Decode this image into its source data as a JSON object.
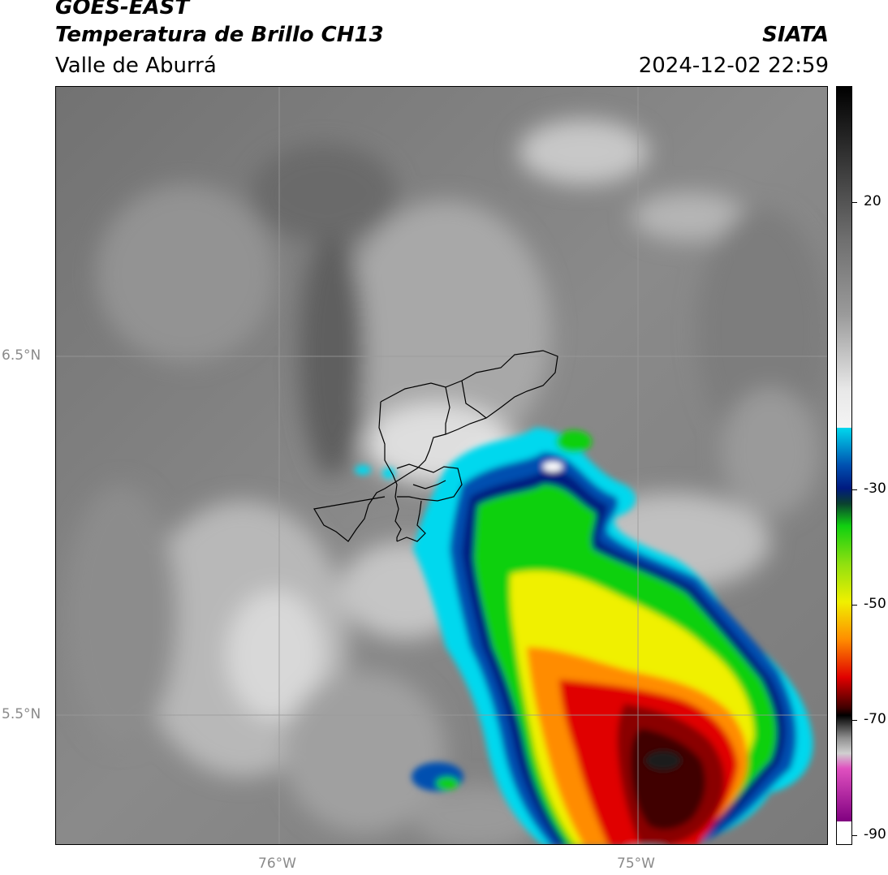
{
  "header": {
    "satellite": "GOES-EAST",
    "product": "Temperatura de Brillo CH13",
    "region": "Valle de Aburrá",
    "agency": "SIATA",
    "timestamp": "2024-12-02 22:59"
  },
  "map": {
    "lat_labels": [
      "6.5°N",
      "5.5°N"
    ],
    "lon_labels": [
      "76°W",
      "75°W"
    ],
    "gridlines": true,
    "overlay": "municipal boundaries (black outline)"
  },
  "colorbar": {
    "orientation": "vertical",
    "position": "right",
    "tick_labels": [
      "20",
      "-30",
      "-50",
      "-70",
      "-90"
    ],
    "colors": {
      "warm_gray_dark": "#6e6e6e",
      "warm_gray_light": "#e8e8e8",
      "cyan": "#00d8ee",
      "blue": "#0050b0",
      "navy": "#001a80",
      "green": "#10d010",
      "yellow": "#f0f000",
      "orange": "#ff8c00",
      "red": "#e00000",
      "dark_red": "#400000",
      "black": "#000000",
      "pink": "#e050c0",
      "purple": "#800080",
      "white": "#ffffff"
    }
  }
}
